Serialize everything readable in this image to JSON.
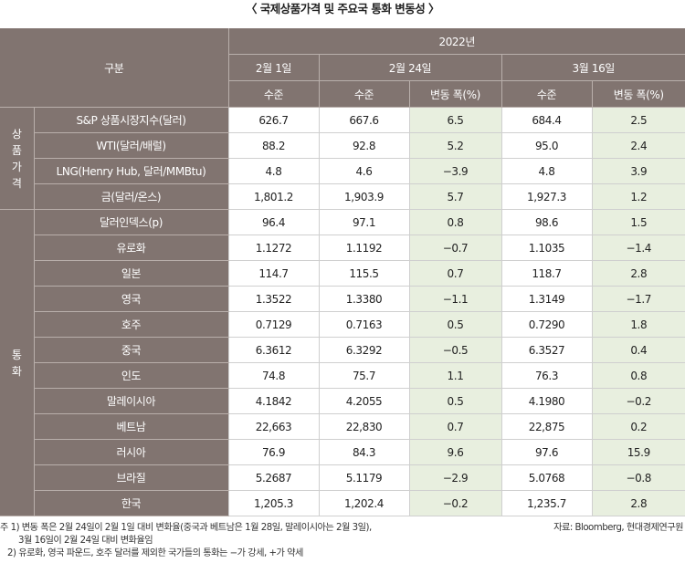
{
  "title": "〈 국제상품가격 및 주요국 통화 변동성 〉",
  "header": {
    "gubun": "구분",
    "year": "2022년",
    "dates": [
      "2월 1일",
      "2월 24일",
      "3월 16일"
    ],
    "level": "수준",
    "change": "변동 폭(%)"
  },
  "groups": {
    "commodity": [
      "상",
      "품",
      "가",
      "격"
    ],
    "currency": [
      "통",
      "화"
    ]
  },
  "rows": [
    {
      "name": "S&P 상품시장지수(달러)",
      "v1": "626.7",
      "v2": "667.6",
      "c2": "6.5",
      "v3": "684.4",
      "c3": "2.5"
    },
    {
      "name": "WTI(달러/배럴)",
      "v1": "88.2",
      "v2": "92.8",
      "c2": "5.2",
      "v3": "95.0",
      "c3": "2.4"
    },
    {
      "name": "LNG(Henry Hub, 달러/MMBtu)",
      "v1": "4.8",
      "v2": "4.6",
      "c2": "−3.9",
      "v3": "4.8",
      "c3": "3.9"
    },
    {
      "name": "금(달러/온스)",
      "v1": "1,801.2",
      "v2": "1,903.9",
      "c2": "5.7",
      "v3": "1,927.3",
      "c3": "1.2"
    },
    {
      "name": "달러인덱스(p)",
      "v1": "96.4",
      "v2": "97.1",
      "c2": "0.8",
      "v3": "98.6",
      "c3": "1.5"
    },
    {
      "name": "유로화",
      "v1": "1.1272",
      "v2": "1.1192",
      "c2": "−0.7",
      "v3": "1.1035",
      "c3": "−1.4"
    },
    {
      "name": "일본",
      "v1": "114.7",
      "v2": "115.5",
      "c2": "0.7",
      "v3": "118.7",
      "c3": "2.8"
    },
    {
      "name": "영국",
      "v1": "1.3522",
      "v2": "1.3380",
      "c2": "−1.1",
      "v3": "1.3149",
      "c3": "−1.7"
    },
    {
      "name": "호주",
      "v1": "0.7129",
      "v2": "0.7163",
      "c2": "0.5",
      "v3": "0.7290",
      "c3": "1.8"
    },
    {
      "name": "중국",
      "v1": "6.3612",
      "v2": "6.3292",
      "c2": "−0.5",
      "v3": "6.3527",
      "c3": "0.4"
    },
    {
      "name": "인도",
      "v1": "74.8",
      "v2": "75.7",
      "c2": "1.1",
      "v3": "76.3",
      "c3": "0.8"
    },
    {
      "name": "말레이시아",
      "v1": "4.1842",
      "v2": "4.2055",
      "c2": "0.5",
      "v3": "4.1980",
      "c3": "−0.2"
    },
    {
      "name": "베트남",
      "v1": "22,663",
      "v2": "22,830",
      "c2": "0.7",
      "v3": "22,875",
      "c3": "0.2"
    },
    {
      "name": "러시아",
      "v1": "76.9",
      "v2": "84.3",
      "c2": "9.6",
      "v3": "97.6",
      "c3": "15.9"
    },
    {
      "name": "브라질",
      "v1": "5.2687",
      "v2": "5.1179",
      "c2": "−2.9",
      "v3": "5.0768",
      "c3": "−0.8"
    },
    {
      "name": "한국",
      "v1": "1,205.3",
      "v2": "1,202.4",
      "c2": "−0.2",
      "v3": "1,235.7",
      "c3": "2.8"
    }
  ],
  "notes": {
    "line1": "주 1) 변동 폭은 2월 24일이 2월 1일 대비 변화율(중국과 베트남은 1월 28일, 말레이시아는 2월 3일),",
    "line2": "3월 16일이 2월 24일 대비 변화율임",
    "line3": "2) 유로화, 영국 파운드, 호주 달러를 제외한 국가들의 통화는 −가 강세, +가 약세",
    "source": "자료: Bloomberg, 현대경제연구원"
  },
  "colors": {
    "header_bg": "#817470",
    "change_bg": "#e8efdf"
  }
}
